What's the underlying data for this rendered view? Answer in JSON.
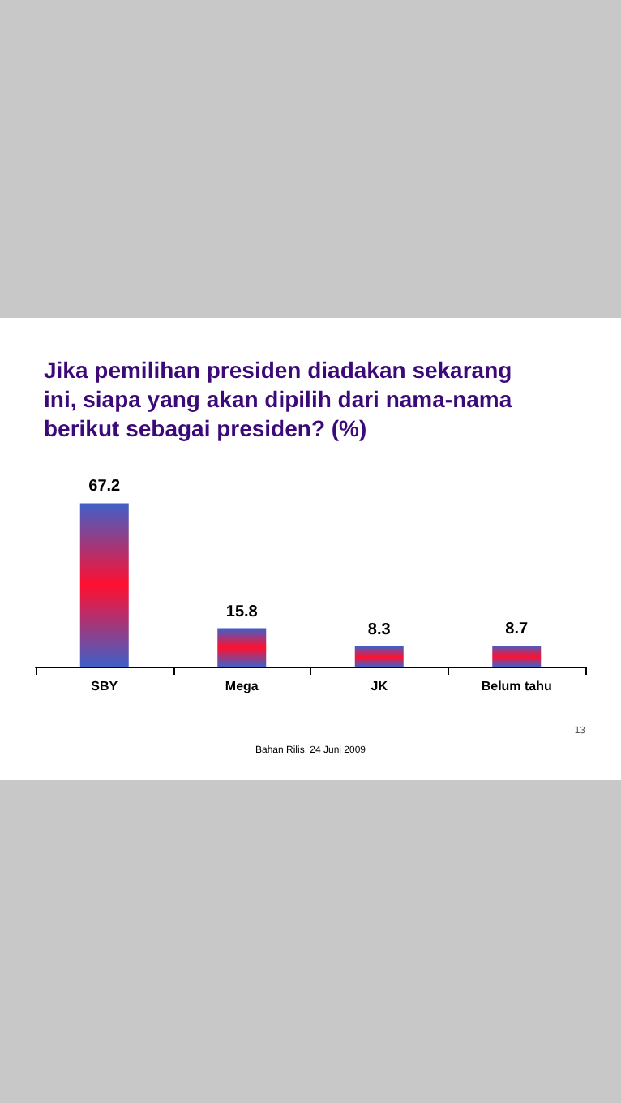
{
  "chart_data": {
    "type": "bar",
    "title": "Jika pemilihan presiden diadakan sekarang ini, siapa yang akan dipilih dari nama-nama berikut sebagai presiden? (%)",
    "categories": [
      "SBY",
      "Mega",
      "JK",
      "Belum tahu"
    ],
    "values": [
      67.2,
      15.8,
      8.3,
      8.7
    ],
    "color": "#ff1030",
    "data_labels": true,
    "grid": false,
    "annotations": [
      "Bahan Rilis, 24 Juni 2009",
      "13"
    ]
  }
}
